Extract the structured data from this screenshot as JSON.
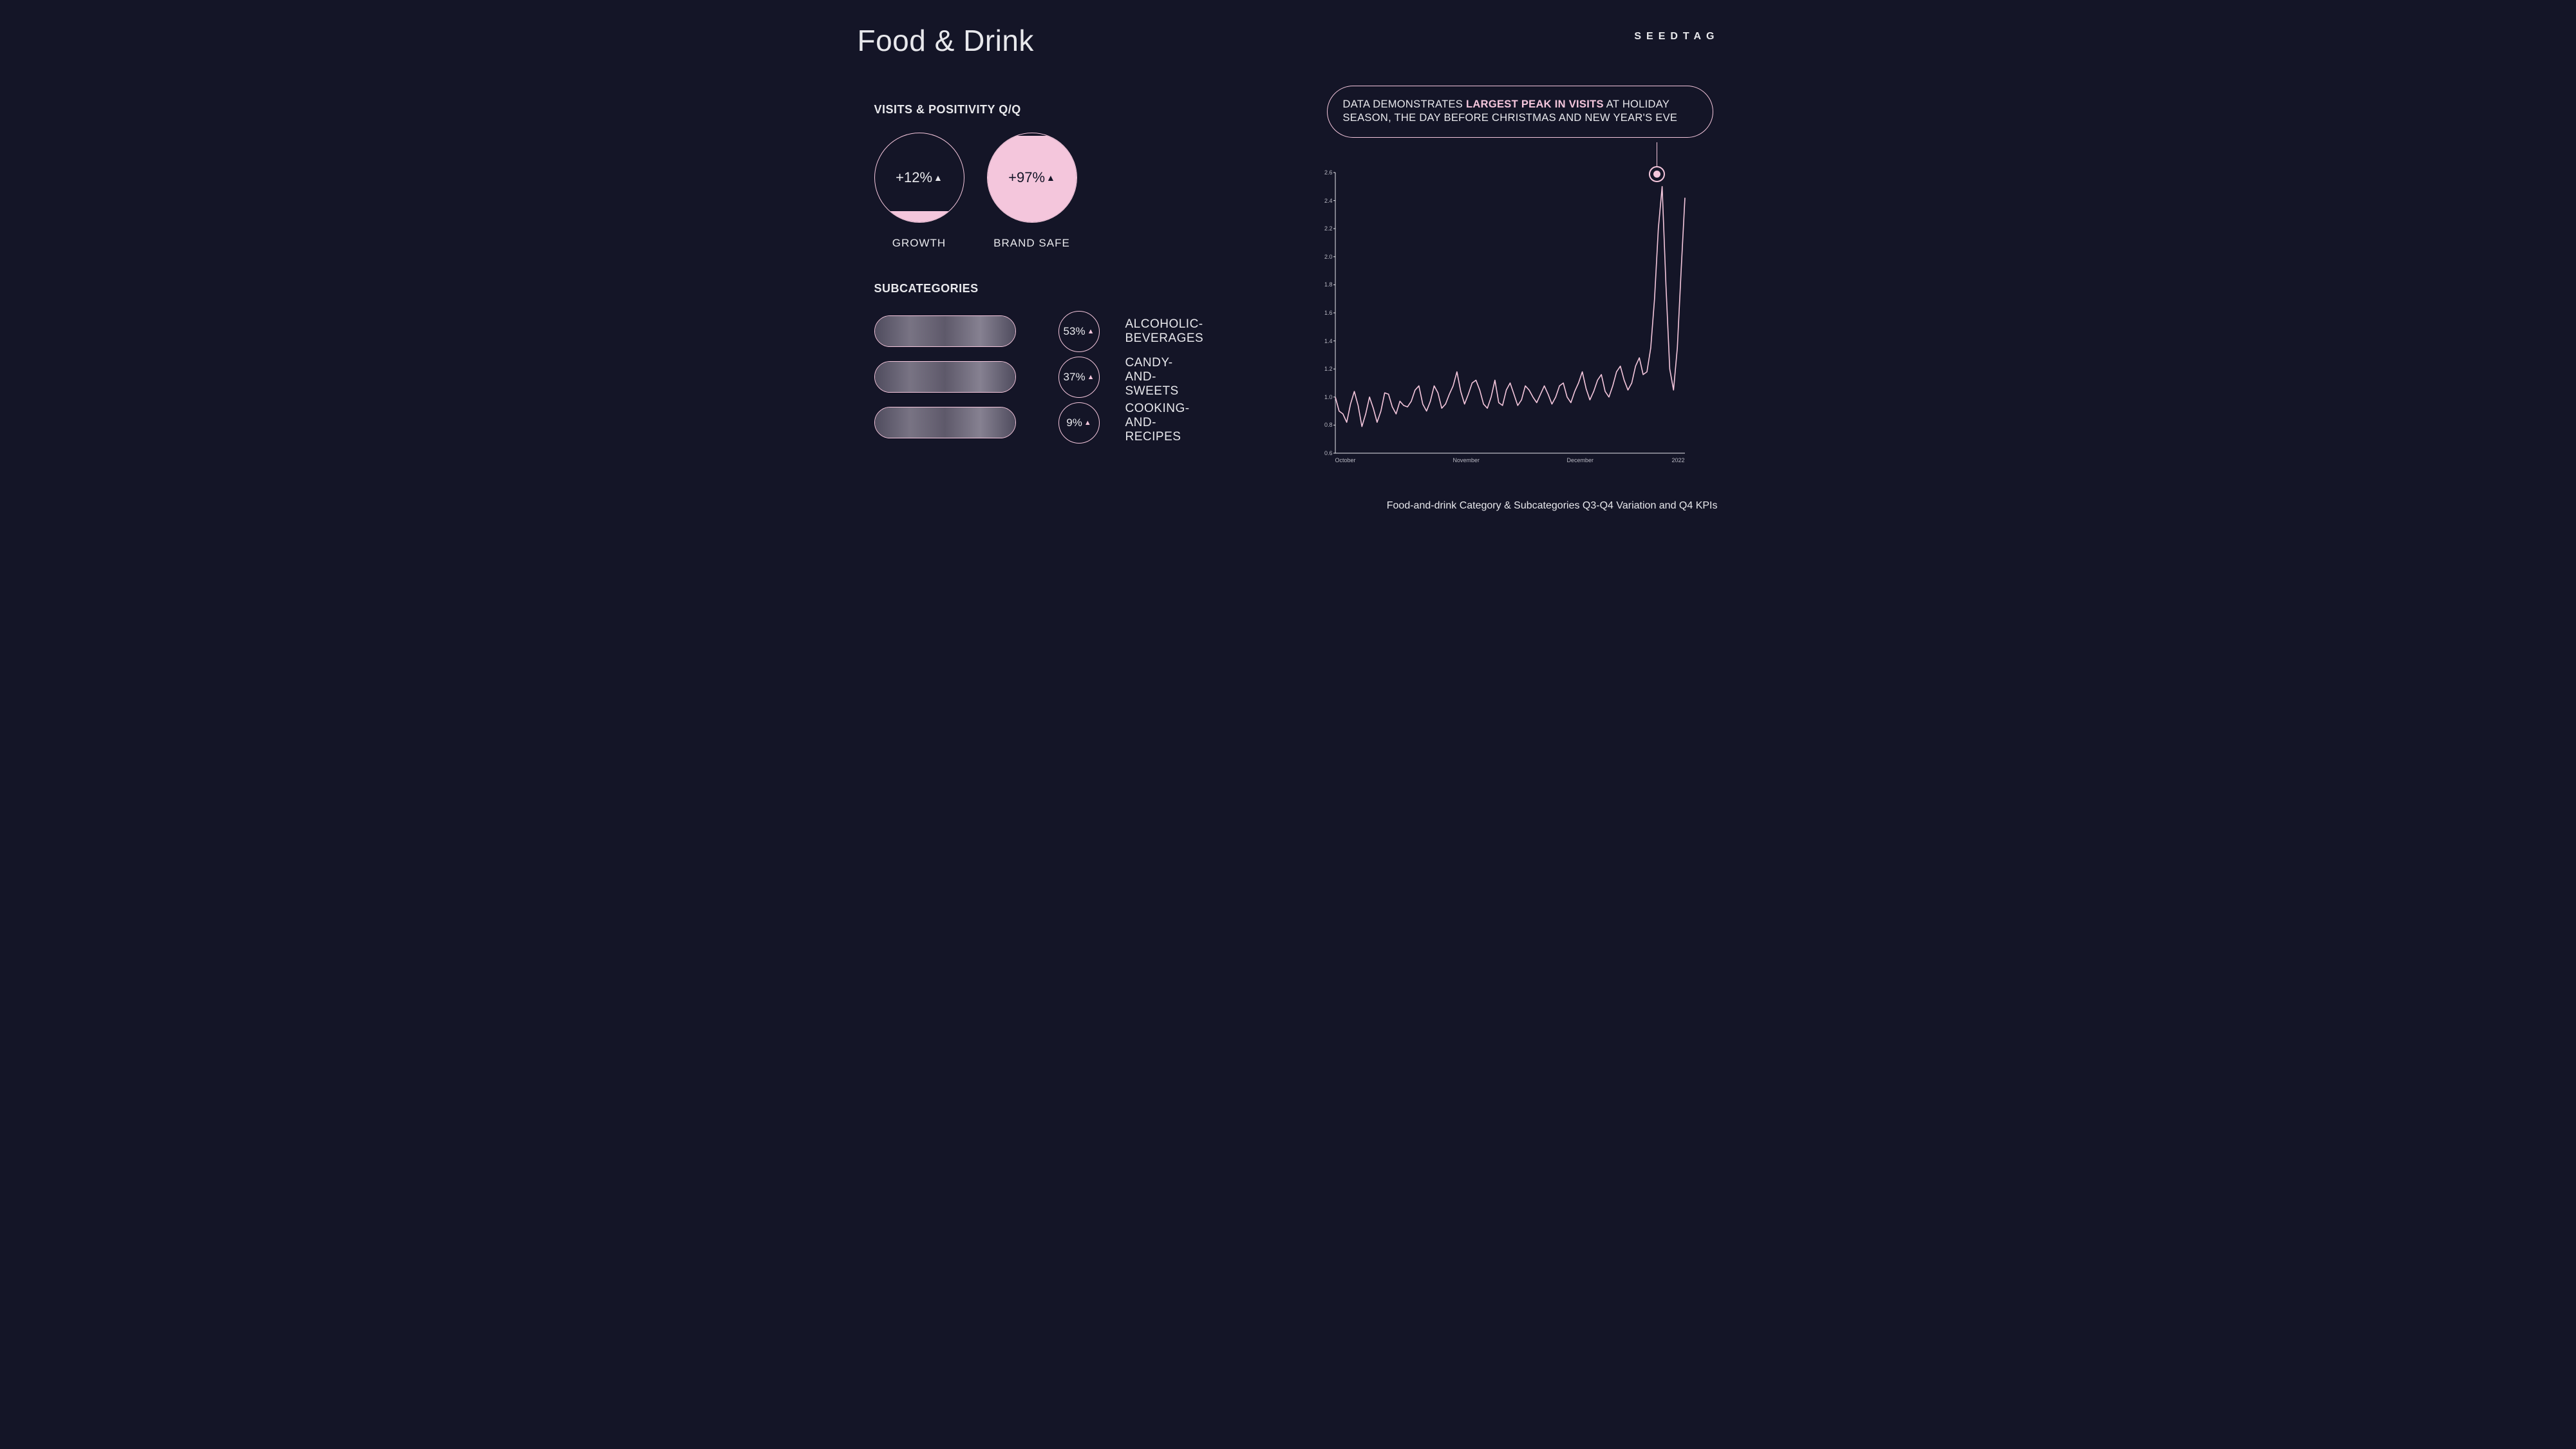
{
  "title": "Food & Drink",
  "brand": "SEEDTAG",
  "visits_header": "VISITS & POSITIVITY Q/Q",
  "subcat_header": "SUBCATEGORIES",
  "kpis": [
    {
      "value": "+12%",
      "fill_pct": 12,
      "label": "GROWTH"
    },
    {
      "value": "+97%",
      "fill_pct": 97,
      "label": "BRAND SAFE"
    }
  ],
  "subcategories": [
    {
      "pct": "53%",
      "label": "ALCOHOLIC-BEVERAGES"
    },
    {
      "pct": "37%",
      "label": "CANDY-AND-SWEETS"
    },
    {
      "pct": "9%",
      "label": "COOKING-AND-RECIPES"
    }
  ],
  "callout_pre": "DATA DEMONSTRATES ",
  "callout_bold": "LARGEST PEAK IN VISITS",
  "callout_post": " AT HOLIDAY SEASON, THE DAY BEFORE CHRISTMAS AND NEW YEAR'S EVE",
  "footer": "Food-and-drink Category & Subcategories Q3-Q4 Variation and Q4 KPIs",
  "chart": {
    "type": "line",
    "line_color": "#f4c6dc",
    "line_width": 1.6,
    "axis_color": "#e8e8ec",
    "background": "#141527",
    "ylim": [
      0.6,
      2.6
    ],
    "yticks": [
      0.6,
      0.8,
      1.0,
      1.2,
      1.4,
      1.6,
      1.8,
      2.0,
      2.2,
      2.4,
      2.6
    ],
    "xticks": [
      "October",
      "November",
      "December",
      "2022"
    ],
    "xtick_positions": [
      0,
      31,
      61,
      92
    ],
    "n_points": 93,
    "series": [
      1.0,
      0.9,
      0.88,
      0.82,
      0.95,
      1.04,
      0.94,
      0.79,
      0.88,
      1.0,
      0.92,
      0.82,
      0.9,
      1.03,
      1.02,
      0.93,
      0.88,
      0.97,
      0.94,
      0.93,
      0.97,
      1.05,
      1.08,
      0.95,
      0.9,
      0.97,
      1.08,
      1.03,
      0.92,
      0.95,
      1.02,
      1.08,
      1.18,
      1.04,
      0.95,
      1.02,
      1.1,
      1.12,
      1.05,
      0.95,
      0.92,
      1.0,
      1.12,
      0.96,
      0.94,
      1.05,
      1.1,
      1.02,
      0.94,
      0.98,
      1.08,
      1.05,
      1.0,
      0.96,
      1.02,
      1.08,
      1.02,
      0.95,
      1.0,
      1.08,
      1.1,
      1.0,
      0.96,
      1.04,
      1.1,
      1.18,
      1.06,
      0.98,
      1.04,
      1.12,
      1.16,
      1.04,
      1.0,
      1.08,
      1.18,
      1.22,
      1.12,
      1.05,
      1.1,
      1.22,
      1.28,
      1.16,
      1.18,
      1.35,
      1.7,
      2.2,
      2.5,
      1.8,
      1.2,
      1.05,
      1.35,
      1.9,
      2.42
    ]
  },
  "colors": {
    "bg": "#141527",
    "accent": "#f4c6dc",
    "text": "#e8e8ec"
  }
}
